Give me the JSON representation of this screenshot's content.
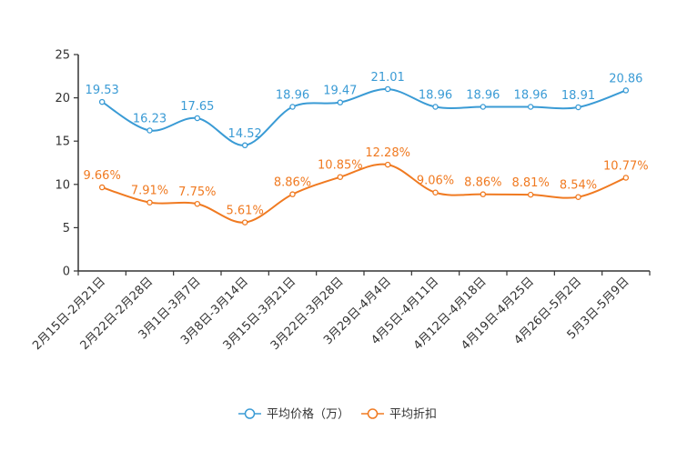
{
  "chart_data": {
    "type": "line",
    "title": "",
    "xlabel": "",
    "ylabel": "",
    "ylim": [
      0,
      25
    ],
    "yticks": [
      0,
      5,
      10,
      15,
      20,
      25
    ],
    "grid": false,
    "legend_position": "bottom-center",
    "categories": [
      "2月15日-2月21日",
      "2月22日-2月28日",
      "3月1日-3月7日",
      "3月8日-3月14日",
      "3月15日-3月21日",
      "3月22日-3月28日",
      "3月29日-4月4日",
      "4月5日-4月11日",
      "4月12日-4月18日",
      "4月19日-4月25日",
      "4月26日-5月2日",
      "5月3日-5月9日"
    ],
    "series": [
      {
        "name": "平均价格（万）",
        "color": "#3A9BD5",
        "values": [
          19.53,
          16.23,
          17.65,
          14.52,
          18.96,
          19.47,
          21.01,
          18.96,
          18.96,
          18.96,
          18.91,
          20.86
        ],
        "labels": [
          "19.53",
          "16.23",
          "17.65",
          "14.52",
          "18.96",
          "19.47",
          "21.01",
          "18.96",
          "18.96",
          "18.96",
          "18.91",
          "20.86"
        ]
      },
      {
        "name": "平均折扣",
        "color": "#F07A21",
        "values": [
          9.66,
          7.91,
          7.75,
          5.61,
          8.86,
          10.85,
          12.28,
          9.06,
          8.86,
          8.81,
          8.54,
          10.77
        ],
        "labels": [
          "9.66%",
          "7.91%",
          "7.75%",
          "5.61%",
          "8.86%",
          "10.85%",
          "12.28%",
          "9.06%",
          "8.86%",
          "8.81%",
          "8.54%",
          "10.77%"
        ]
      }
    ]
  }
}
